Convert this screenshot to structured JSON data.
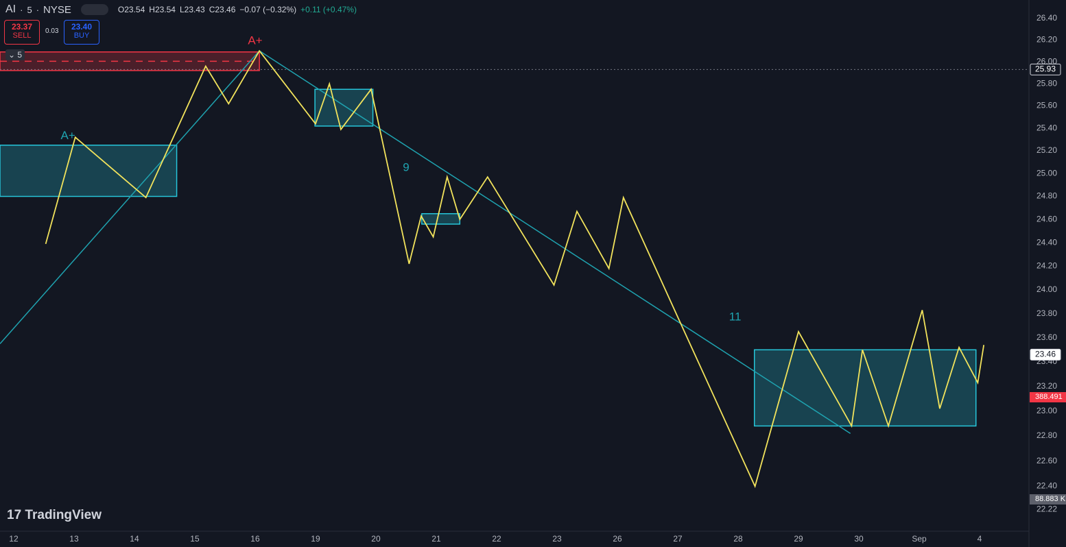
{
  "toolbar": {
    "symbol": "AI",
    "interval": "5",
    "exchange": "NYSE",
    "ohlc": [
      "O23.54",
      "H23.54",
      "L23.43",
      "C23.46"
    ],
    "change": "−0.07 (−0.32%)",
    "ext_change": "+0.11 (+0.47%)",
    "sell_price": "23.37",
    "sell_label": "SELL",
    "spread": "0.03",
    "buy_price": "23.40",
    "buy_label": "BUY",
    "layout_count": "5",
    "volume_label": "88.883 K",
    "countdown": "388.491",
    "brand": "TradingView"
  },
  "chart_data": {
    "type": "line",
    "log_scale": true,
    "grid": false,
    "color": "#f2e35c",
    "x": [
      0.53,
      1.02,
      2.19,
      3.18,
      3.56,
      4.07,
      5.0,
      5.23,
      5.42,
      5.92,
      6.55,
      6.75,
      6.95,
      7.18,
      7.39,
      7.85,
      8.95,
      9.33,
      9.86,
      10.1,
      11.02,
      12.28,
      13.0,
      13.88,
      14.06,
      14.49,
      15.05,
      15.34,
      15.66,
      15.97,
      16.07
    ],
    "values": [
      24.39,
      25.32,
      24.79,
      25.96,
      25.62,
      26.1,
      25.44,
      25.8,
      25.39,
      25.75,
      24.22,
      24.63,
      24.45,
      24.97,
      24.6,
      24.97,
      24.04,
      24.67,
      24.18,
      24.79,
      23.75,
      22.4,
      23.65,
      22.88,
      23.5,
      22.88,
      23.83,
      23.02,
      23.52,
      23.23,
      23.54
    ],
    "xlim": [
      -0.227,
      16.818
    ],
    "xticks": [
      {
        "value": 0,
        "label": "12"
      },
      {
        "value": 1,
        "label": "13"
      },
      {
        "value": 2,
        "label": "14"
      },
      {
        "value": 3,
        "label": "15"
      },
      {
        "value": 4,
        "label": "16"
      },
      {
        "value": 5,
        "label": "19"
      },
      {
        "value": 6,
        "label": "20"
      },
      {
        "value": 7,
        "label": "21"
      },
      {
        "value": 8,
        "label": "22"
      },
      {
        "value": 9,
        "label": "23"
      },
      {
        "value": 10,
        "label": "26"
      },
      {
        "value": 11,
        "label": "27"
      },
      {
        "value": 12,
        "label": "28"
      },
      {
        "value": 13,
        "label": "29"
      },
      {
        "value": 14,
        "label": "30"
      },
      {
        "value": 15,
        "label": "Sep"
      },
      {
        "value": 16,
        "label": "4"
      }
    ],
    "ylim": [
      22.05,
      26.57
    ],
    "yticks": [
      22.22,
      {
        "value": 22.4,
        "label": "22.40"
      },
      {
        "value": 22.6,
        "label": "22.60"
      },
      {
        "value": 22.8,
        "label": "22.80"
      },
      {
        "value": 23.0,
        "label": "23.00"
      },
      {
        "value": 23.2,
        "label": "23.20"
      },
      {
        "value": 23.4,
        "label": "23.40"
      },
      {
        "value": 23.6,
        "label": "23.60"
      },
      {
        "value": 23.8,
        "label": "23.80"
      },
      {
        "value": 24.0,
        "label": "24.00"
      },
      {
        "value": 24.2,
        "label": "24.20"
      },
      {
        "value": 24.4,
        "label": "24.40"
      },
      {
        "value": 24.6,
        "label": "24.60"
      },
      {
        "value": 24.8,
        "label": "24.80"
      },
      {
        "value": 25.0,
        "label": "25.00"
      },
      {
        "value": 25.2,
        "label": "25.20"
      },
      {
        "value": 25.4,
        "label": "25.40"
      },
      {
        "value": 25.6,
        "label": "25.60"
      },
      {
        "value": 25.8,
        "label": "25.80"
      },
      {
        "value": 26.0,
        "label": "26.00"
      },
      {
        "value": 26.2,
        "label": "26.20"
      },
      {
        "value": 26.4,
        "label": "26.40"
      }
    ],
    "zones": [
      {
        "x": [
          -0.227,
          2.7
        ],
        "y": [
          24.8,
          25.25
        ],
        "color": "#26c6da"
      },
      {
        "x": [
          4.99,
          5.95
        ],
        "y": [
          25.42,
          25.75
        ],
        "color": "#26c6da"
      },
      {
        "x": [
          6.76,
          7.39
        ],
        "y": [
          24.56,
          24.65
        ],
        "color": "#26c6da"
      },
      {
        "x": [
          12.27,
          15.94
        ],
        "y": [
          22.88,
          23.5
        ],
        "color": "#26c6da"
      },
      {
        "x": [
          -0.227,
          4.07
        ],
        "y": [
          25.92,
          26.09
        ],
        "color": "#f23645"
      }
    ],
    "trendlines": [
      {
        "x": [
          -0.227,
          4.07
        ],
        "y": [
          23.55,
          26.1
        ],
        "color": "#1fa3b0"
      },
      {
        "x": [
          4.07,
          13.86
        ],
        "y": [
          26.1,
          22.82
        ],
        "color": "#1fa3b0"
      }
    ],
    "annotations": [
      {
        "text": "A+",
        "x": 4.0,
        "y": 26.19,
        "color": "#f23645"
      },
      {
        "text": "A+",
        "x": 0.9,
        "y": 25.33,
        "color": "#1fa3b0"
      },
      {
        "text": "9",
        "x": 6.5,
        "y": 25.05,
        "color": "#1fa3b0"
      },
      {
        "text": "11",
        "x": 11.95,
        "y": 23.77,
        "color": "#1fa3b0"
      }
    ],
    "price_markers": [
      {
        "value": 25.93,
        "style": "dashed"
      },
      {
        "value": 23.46,
        "style": "last"
      }
    ]
  }
}
